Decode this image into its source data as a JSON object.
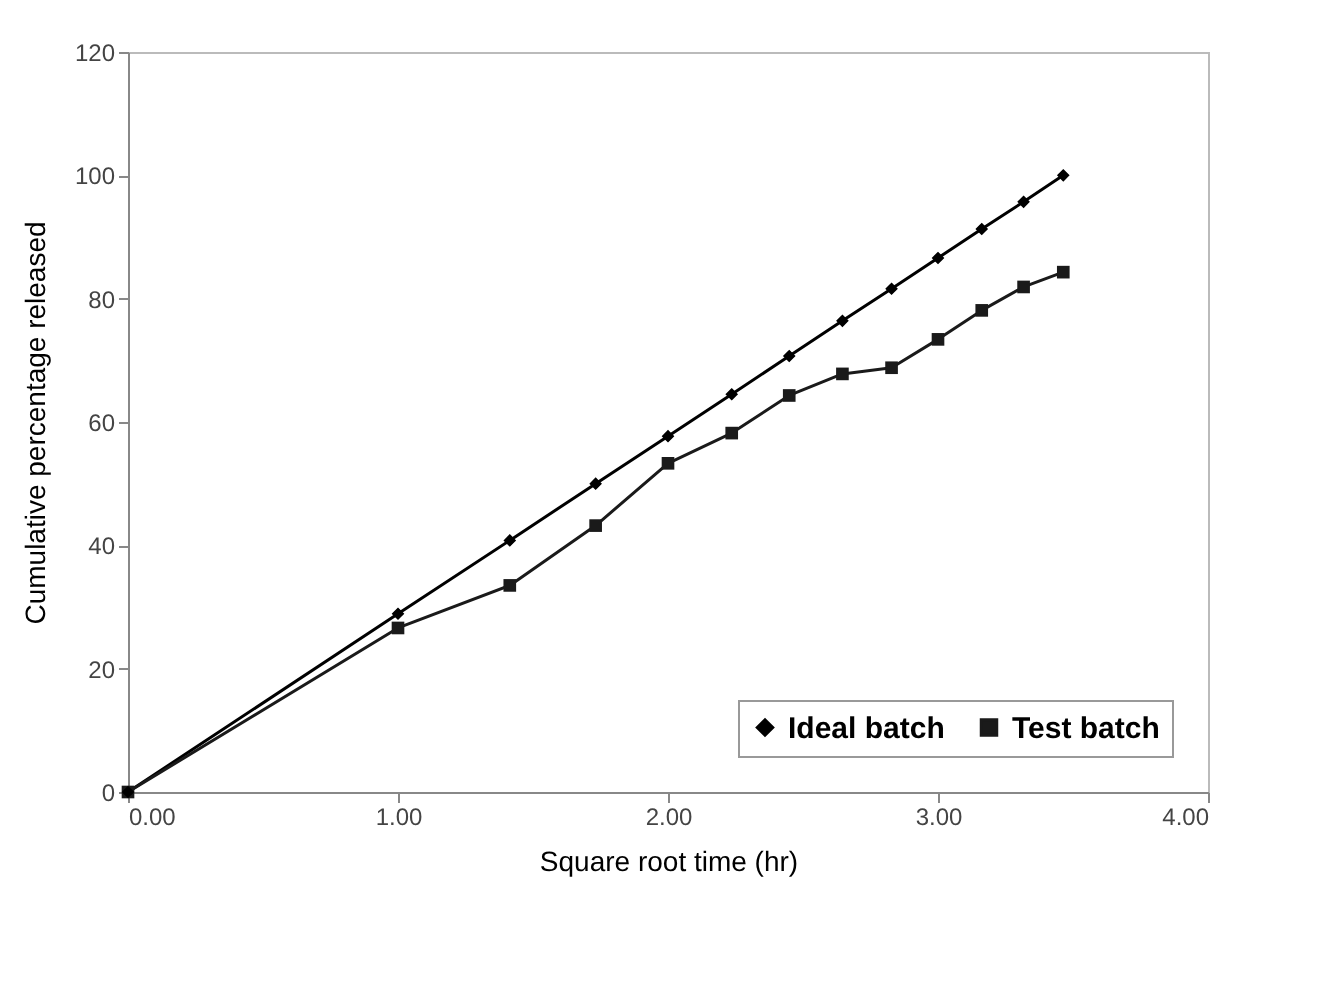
{
  "chart_data": {
    "type": "line",
    "xlabel": "Square root time (hr)",
    "ylabel": "Cumulative percentage released",
    "x": [
      0,
      1,
      1.414,
      1.732,
      2,
      2.236,
      2.449,
      2.646,
      2.828,
      3,
      3.162,
      3.317,
      3.464
    ],
    "series": [
      {
        "name": "Ideal batch",
        "color": "#000000",
        "marker": "diamond",
        "values": [
          0,
          28.9,
          40.8,
          50,
          57.7,
          64.5,
          70.7,
          76.4,
          81.6,
          86.6,
          91.3,
          95.7,
          100
        ]
      },
      {
        "name": "Test batch",
        "color": "#1a1a1a",
        "marker": "square",
        "values": [
          0,
          26.6,
          33.5,
          43.2,
          53.3,
          58.2,
          64.3,
          67.8,
          68.8,
          73.4,
          78.1,
          81.9,
          84.3
        ]
      }
    ],
    "xlim": [
      0,
      4
    ],
    "xticks": [
      {
        "value": 0,
        "label": "0.00"
      },
      {
        "value": 1,
        "label": "1.00"
      },
      {
        "value": 2,
        "label": "2.00"
      },
      {
        "value": 3,
        "label": "3.00"
      },
      {
        "value": 4,
        "label": "4.00"
      }
    ],
    "ylim": [
      0,
      120
    ],
    "yticks": [
      0,
      20,
      40,
      60,
      80,
      100,
      120
    ],
    "grid": false,
    "legend": "bottom right",
    "line_style": "solid"
  }
}
